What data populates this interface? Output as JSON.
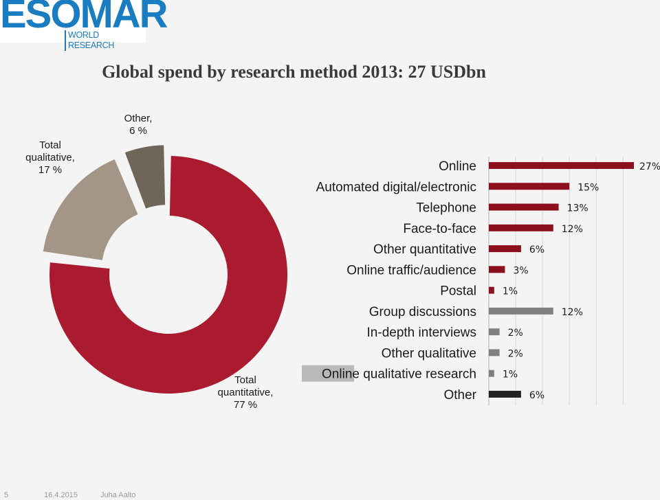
{
  "logo": {
    "word": "ESOMAR",
    "sub": "WORLD RESEARCH"
  },
  "title": "Global spend by research method 2013: 27 USDbn",
  "chart_data": [
    {
      "type": "pie",
      "variant": "donut",
      "slices": [
        {
          "label_lines": [
            "Total",
            "quantitative,",
            "77 %"
          ],
          "value": 77,
          "color": "#ab1b2f"
        },
        {
          "label_lines": [
            "Total",
            "qualitative,",
            "17 %"
          ],
          "value": 17,
          "color": "#a49686"
        },
        {
          "label_lines": [
            "Other,",
            "6 %"
          ],
          "value": 6,
          "color": "#6f6558"
        }
      ]
    },
    {
      "type": "bar",
      "orientation": "horizontal",
      "unit": "%",
      "xlim": [
        0,
        27
      ],
      "grid": true,
      "categories": [
        {
          "label": "Online",
          "value": 27,
          "value_label": "27%",
          "color": "#8b0f1d"
        },
        {
          "label": "Automated digital/electronic",
          "value": 15,
          "value_label": "15%",
          "color": "#8b0f1d"
        },
        {
          "label": "Telephone",
          "value": 13,
          "value_label": "13%",
          "color": "#8b0f1d"
        },
        {
          "label": "Face-to-face",
          "value": 12,
          "value_label": "12%",
          "color": "#8b0f1d"
        },
        {
          "label": "Other quantitative",
          "value": 6,
          "value_label": "6%",
          "color": "#8b0f1d"
        },
        {
          "label": "Online traffic/audience",
          "value": 3,
          "value_label": "3%",
          "color": "#8b0f1d"
        },
        {
          "label": "Postal",
          "value": 1,
          "value_label": "1%",
          "color": "#8b0f1d"
        },
        {
          "label": "Group discussions",
          "value": 12,
          "value_label": "12%",
          "color": "#808080"
        },
        {
          "label": "In-depth interviews",
          "value": 2,
          "value_label": "2%",
          "color": "#808080"
        },
        {
          "label": "Other qualitative",
          "value": 2,
          "value_label": "2%",
          "color": "#808080"
        },
        {
          "label": "Online qualitative research",
          "label_highlight": "Online",
          "label_rest": " qualitative research",
          "value": 1,
          "value_label": "1%",
          "color": "#808080"
        },
        {
          "label": "Other",
          "value": 6,
          "value_label": "6%",
          "color": "#222222"
        }
      ]
    }
  ],
  "footer": {
    "page": "5",
    "date": "16.4.2015",
    "author": "Juha Aalto"
  }
}
